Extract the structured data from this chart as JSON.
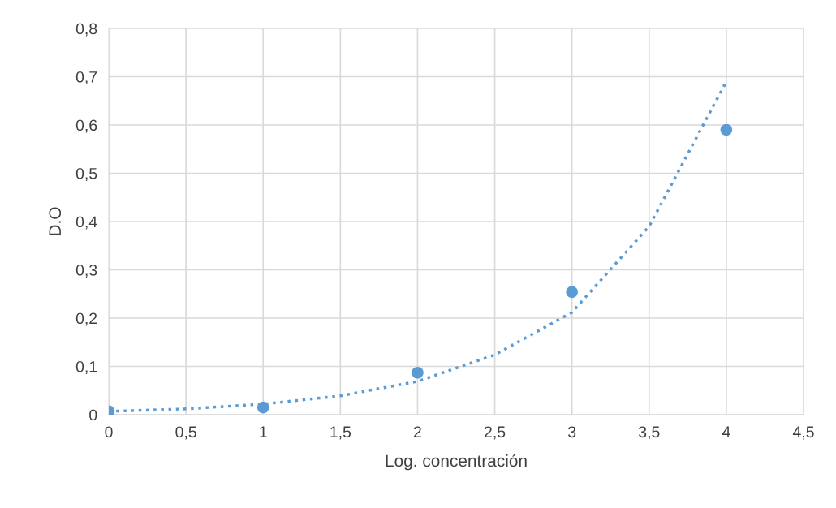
{
  "chart_data": {
    "type": "scatter",
    "xlabel": "Log. concentración",
    "ylabel": "D.O",
    "series": [
      {
        "color": "#5b9bd5",
        "marker": "circle",
        "x": [
          0,
          1,
          2,
          3,
          4
        ],
        "values": [
          0.007,
          0.015,
          0.087,
          0.254,
          0.59
        ]
      },
      {
        "type": "line",
        "color": "#5b9bd5",
        "line_style": "dotted",
        "marker": "none",
        "x": [
          0,
          0.5,
          1,
          1.5,
          2,
          2.5,
          3,
          3.5,
          4
        ],
        "values": [
          0.007,
          0.012,
          0.022,
          0.039,
          0.069,
          0.124,
          0.212,
          0.39,
          0.69
        ]
      }
    ],
    "xlim": [
      0,
      4.5
    ],
    "ylim": [
      0,
      0.8
    ],
    "xticks": [
      0,
      {
        "value": 0.5,
        "label": "0,5"
      },
      1,
      {
        "value": 1.5,
        "label": "1,5"
      },
      2,
      {
        "value": 2.5,
        "label": "2,5"
      },
      3,
      {
        "value": 3.5,
        "label": "3,5"
      },
      4,
      {
        "value": 4.5,
        "label": "4,5"
      }
    ],
    "yticks": [
      0,
      {
        "value": 0.1,
        "label": "0,1"
      },
      {
        "value": 0.2,
        "label": "0,2"
      },
      {
        "value": 0.3,
        "label": "0,3"
      },
      {
        "value": 0.4,
        "label": "0,4"
      },
      {
        "value": 0.5,
        "label": "0,5"
      },
      {
        "value": 0.6,
        "label": "0,6"
      },
      {
        "value": 0.7,
        "label": "0,7"
      },
      {
        "value": 0.8,
        "label": "0,8"
      }
    ],
    "grid": true,
    "legend": false
  }
}
